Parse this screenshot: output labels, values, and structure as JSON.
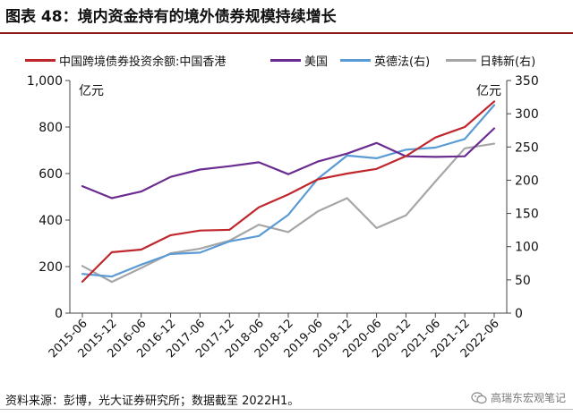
{
  "header": {
    "title": "图表 48：境内资金持有的境外债券规模持续增长"
  },
  "footer": {
    "source": "资料来源：彭博，光大证券研究所；数据截至 2022H1。",
    "watermark": "高瑞东宏观笔记"
  },
  "chart_data": {
    "type": "line",
    "categories": [
      "2015-06",
      "2015-12",
      "2016-06",
      "2016-12",
      "2017-06",
      "2017-12",
      "2018-06",
      "2018-12",
      "2019-06",
      "2019-12",
      "2020-06",
      "2020-12",
      "2021-06",
      "2021-12",
      "2022-06"
    ],
    "left_axis": {
      "unit": "亿元",
      "ylim": [
        0,
        1000
      ],
      "ticks": [
        "0",
        "200",
        "400",
        "600",
        "800",
        "1,000"
      ]
    },
    "right_axis": {
      "unit": "亿元",
      "ylim": [
        0,
        350
      ],
      "ticks": [
        "0",
        "50",
        "100",
        "150",
        "200",
        "250",
        "300",
        "350"
      ]
    },
    "series": [
      {
        "name": "中国跨境债券投资余额:中国香港",
        "axis": "left",
        "color": "#c0272d",
        "values": [
          135,
          262,
          273,
          335,
          355,
          358,
          455,
          510,
          575,
          600,
          620,
          675,
          755,
          800,
          910
        ]
      },
      {
        "name": "美国",
        "axis": "right",
        "color": "#6b2c91",
        "values": [
          191,
          173,
          183,
          205,
          216,
          221,
          227,
          209,
          228,
          240,
          256,
          236,
          235,
          236,
          278
        ]
      },
      {
        "name": "英德法(右)",
        "axis": "right",
        "color": "#5b9bd5",
        "values": [
          59,
          55,
          73,
          89,
          91,
          108,
          116,
          148,
          202,
          237,
          233,
          246,
          249,
          262,
          313
        ]
      },
      {
        "name": "日韩新(右)",
        "axis": "right",
        "color": "#a6a6a6",
        "values": [
          71,
          47,
          68,
          90,
          97,
          109,
          133,
          122,
          153,
          173,
          128,
          147,
          198,
          248,
          255
        ]
      }
    ],
    "grid": false,
    "legend_position": "top"
  }
}
